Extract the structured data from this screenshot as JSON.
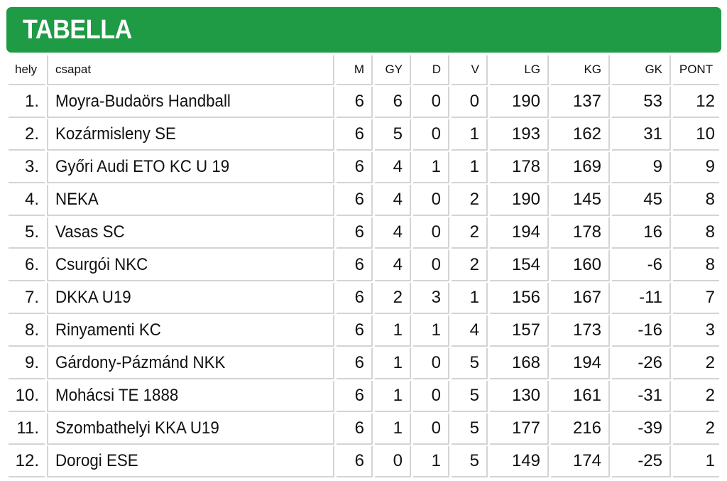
{
  "header": {
    "title": "TABELLA",
    "color": "#1f9a45"
  },
  "table": {
    "columns": {
      "rank": "hely",
      "team": "csapat",
      "played": "M",
      "won": "GY",
      "drawn": "D",
      "lost": "V",
      "goals_for": "LG",
      "goals_against": "KG",
      "goal_diff": "GK",
      "points": "PONT"
    },
    "rows": [
      {
        "rank": "1.",
        "team": "Moyra-Budaörs Handball",
        "played": "6",
        "won": "6",
        "drawn": "0",
        "lost": "0",
        "goals_for": "190",
        "goals_against": "137",
        "goal_diff": "53",
        "points": "12"
      },
      {
        "rank": "2.",
        "team": "Kozármisleny SE",
        "played": "6",
        "won": "5",
        "drawn": "0",
        "lost": "1",
        "goals_for": "193",
        "goals_against": "162",
        "goal_diff": "31",
        "points": "10"
      },
      {
        "rank": "3.",
        "team": "Győri Audi ETO KC U 19",
        "played": "6",
        "won": "4",
        "drawn": "1",
        "lost": "1",
        "goals_for": "178",
        "goals_against": "169",
        "goal_diff": "9",
        "points": "9"
      },
      {
        "rank": "4.",
        "team": "NEKA",
        "played": "6",
        "won": "4",
        "drawn": "0",
        "lost": "2",
        "goals_for": "190",
        "goals_against": "145",
        "goal_diff": "45",
        "points": "8"
      },
      {
        "rank": "5.",
        "team": "Vasas SC",
        "played": "6",
        "won": "4",
        "drawn": "0",
        "lost": "2",
        "goals_for": "194",
        "goals_against": "178",
        "goal_diff": "16",
        "points": "8"
      },
      {
        "rank": "6.",
        "team": "Csurgói NKC",
        "played": "6",
        "won": "4",
        "drawn": "0",
        "lost": "2",
        "goals_for": "154",
        "goals_against": "160",
        "goal_diff": "-6",
        "points": "8"
      },
      {
        "rank": "7.",
        "team": "DKKA U19",
        "played": "6",
        "won": "2",
        "drawn": "3",
        "lost": "1",
        "goals_for": "156",
        "goals_against": "167",
        "goal_diff": "-11",
        "points": "7"
      },
      {
        "rank": "8.",
        "team": "Rinyamenti KC",
        "played": "6",
        "won": "1",
        "drawn": "1",
        "lost": "4",
        "goals_for": "157",
        "goals_against": "173",
        "goal_diff": "-16",
        "points": "3"
      },
      {
        "rank": "9.",
        "team": "Gárdony-Pázmánd NKK",
        "played": "6",
        "won": "1",
        "drawn": "0",
        "lost": "5",
        "goals_for": "168",
        "goals_against": "194",
        "goal_diff": "-26",
        "points": "2"
      },
      {
        "rank": "10.",
        "team": "Mohácsi TE 1888",
        "played": "6",
        "won": "1",
        "drawn": "0",
        "lost": "5",
        "goals_for": "130",
        "goals_against": "161",
        "goal_diff": "-31",
        "points": "2"
      },
      {
        "rank": "11.",
        "team": "Szombathelyi KKA U19",
        "played": "6",
        "won": "1",
        "drawn": "0",
        "lost": "5",
        "goals_for": "177",
        "goals_against": "216",
        "goal_diff": "-39",
        "points": "2"
      },
      {
        "rank": "12.",
        "team": "Dorogi ESE",
        "played": "6",
        "won": "0",
        "drawn": "1",
        "lost": "5",
        "goals_for": "149",
        "goals_against": "174",
        "goal_diff": "-25",
        "points": "1"
      }
    ]
  }
}
